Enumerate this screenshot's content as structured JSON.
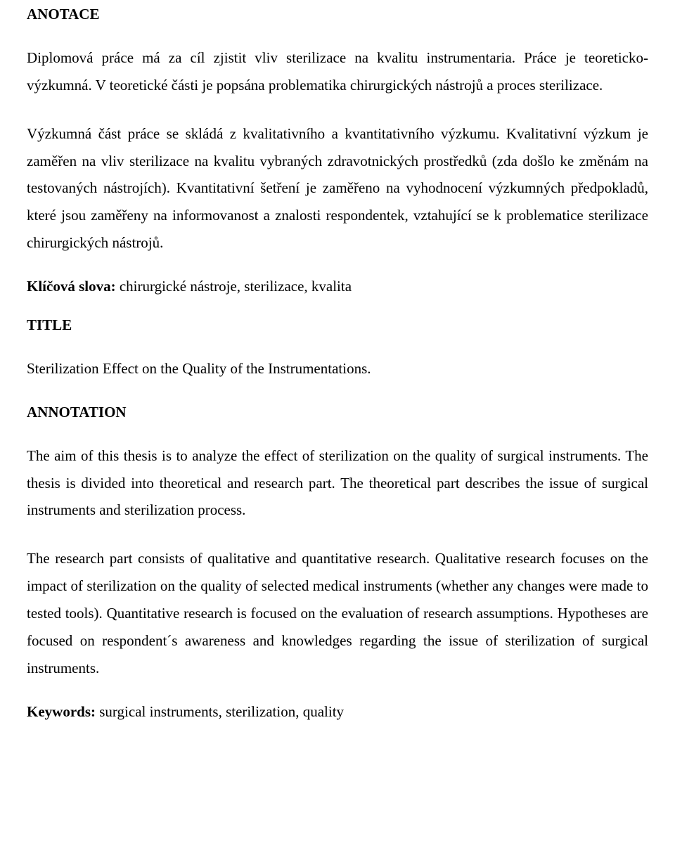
{
  "section1": {
    "heading": "ANOTACE",
    "paragraph1": "Diplomová práce má za cíl zjistit vliv sterilizace na kvalitu instrumentaria. Práce je teoreticko-výzkumná. V teoretické části je popsána problematika chirurgických nástrojů a proces sterilizace.",
    "paragraph2": "Výzkumná část práce se skládá z kvalitativního a kvantitativního výzkumu. Kvalitativní výzkum je zaměřen na vliv sterilizace na kvalitu vybraných zdravotnických prostředků (zda došlo ke změnám na testovaných nástrojích). Kvantitativní šetření je zaměřeno na vyhodnocení výzkumných předpokladů, které jsou zaměřeny na informovanost a znalosti respondentek, vztahující se k problematice sterilizace chirurgických nástrojů.",
    "keywords_label": "Klíčová slova: ",
    "keywords_value": "chirurgické nástroje, sterilizace, kvalita"
  },
  "section2": {
    "heading": "TITLE",
    "paragraph": "Sterilization Effect on the Quality of the Instrumentations."
  },
  "section3": {
    "heading": "ANNOTATION",
    "paragraph1": "The aim of this thesis is to analyze the effect of sterilization on the quality of surgical instruments. The thesis is divided into theoretical and research part. The theoretical part describes the issue of surgical instruments and sterilization process.",
    "paragraph2": "The research part consists of qualitative and quantitative research. Qualitative research focuses on the impact of sterilization on the quality of selected medical instruments (whether any changes were made to tested tools). Quantitative research is focused on the evaluation of research assumptions. Hypotheses are focused on respondent´s awareness and knowledges regarding the issue of sterilization of surgical instruments.",
    "keywords_label": "Keywords: ",
    "keywords_value": "surgical instruments, sterilization, quality"
  }
}
